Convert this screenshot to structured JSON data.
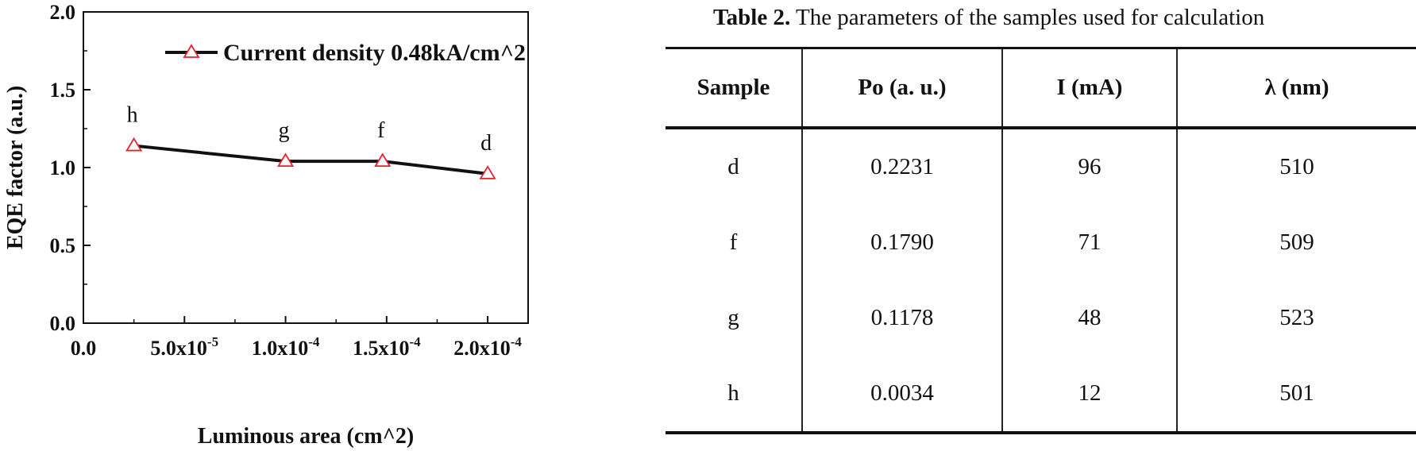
{
  "chart_data": {
    "type": "line",
    "xlabel": "Luminous area (cm^2)",
    "ylabel": "EQE factor (a.u.)",
    "xlim": [
      0,
      0.00022
    ],
    "ylim": [
      0,
      2.0
    ],
    "x_ticks": [
      {
        "value": 0,
        "label": "0.0",
        "sup": ""
      },
      {
        "value": 5e-05,
        "label": "5.0x10",
        "sup": "-5"
      },
      {
        "value": 0.0001,
        "label": "1.0x10",
        "sup": "-4"
      },
      {
        "value": 0.00015,
        "label": "1.5x10",
        "sup": "-4"
      },
      {
        "value": 0.0002,
        "label": "2.0x10",
        "sup": "-4"
      }
    ],
    "y_ticks": [
      {
        "value": 0,
        "label": "0.0"
      },
      {
        "value": 0.5,
        "label": "0.5"
      },
      {
        "value": 1.0,
        "label": "1.0"
      },
      {
        "value": 1.5,
        "label": "1.5"
      },
      {
        "value": 2.0,
        "label": "2.0"
      }
    ],
    "series": [
      {
        "name": "Current density 0.48kA/cm^2",
        "marker": "open-triangle",
        "marker_color": "#e8212e",
        "line_color": "#111111",
        "points": [
          {
            "x": 2.5e-05,
            "y": 1.14,
            "label": "h"
          },
          {
            "x": 0.0001,
            "y": 1.04,
            "label": "g"
          },
          {
            "x": 0.000148,
            "y": 1.04,
            "label": "f"
          },
          {
            "x": 0.0002,
            "y": 0.96,
            "label": "d"
          }
        ]
      }
    ],
    "legend_position": "top-right",
    "grid": false
  },
  "table": {
    "caption_bold": "Table 2.",
    "caption_text": " The parameters of the samples used for calculation",
    "headers": [
      "Sample",
      "Po (a. u.)",
      "I (mA)",
      "λ (nm)"
    ],
    "rows": [
      [
        "d",
        "0.2231",
        "96",
        "510"
      ],
      [
        "f",
        "0.1790",
        "71",
        "509"
      ],
      [
        "g",
        "0.1178",
        "48",
        "523"
      ],
      [
        "h",
        "0.0034",
        "12",
        "501"
      ]
    ]
  }
}
